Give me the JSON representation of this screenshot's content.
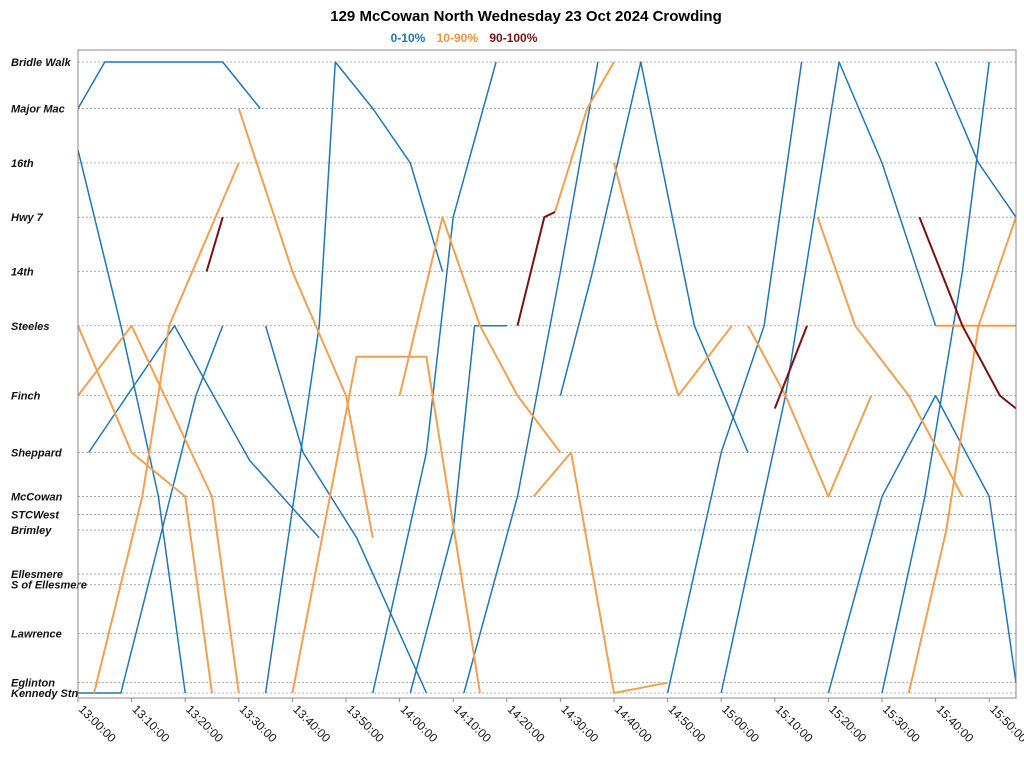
{
  "chart_data": {
    "type": "line",
    "title": "129 McCowan North Wednesday 23 Oct 2024 Crowding",
    "xlabel": "",
    "ylabel": "",
    "x_range": [
      "13:00:00",
      "15:55:00"
    ],
    "x_ticks": [
      "13:00:00",
      "13:10:00",
      "13:20:00",
      "13:30:00",
      "13:40:00",
      "13:50:00",
      "14:00:00",
      "14:10:00",
      "14:20:00",
      "14:30:00",
      "14:40:00",
      "14:50:00",
      "15:00:00",
      "15:10:00",
      "15:20:00",
      "15:30:00",
      "15:40:00",
      "15:50:00"
    ],
    "stops": [
      {
        "name": "Bridle Walk",
        "km": 18.2
      },
      {
        "name": "Major Mac",
        "km": 17.3
      },
      {
        "name": "16th",
        "km": 16.25
      },
      {
        "name": "Hwy 7",
        "km": 15.2
      },
      {
        "name": "14th",
        "km": 14.15
      },
      {
        "name": "Steeles",
        "km": 13.1
      },
      {
        "name": "Finch",
        "km": 11.75
      },
      {
        "name": "Sheppard",
        "km": 10.65
      },
      {
        "name": "McCowan",
        "km": 9.8
      },
      {
        "name": "STCWest",
        "km": 9.45
      },
      {
        "name": "Brimley",
        "km": 9.15
      },
      {
        "name": "Ellesmere",
        "km": 8.3
      },
      {
        "name": "S of Ellesmere",
        "km": 8.1
      },
      {
        "name": "Lawrence",
        "km": 7.15
      },
      {
        "name": "Eglinton",
        "km": 6.2
      },
      {
        "name": "Kennedy Stn",
        "km": 6.0
      }
    ],
    "legend": [
      {
        "label": "0-10%",
        "color": "#1f77b4"
      },
      {
        "label": "10-90%",
        "color": "#f0a050"
      },
      {
        "label": "90-100%",
        "color": "#7b1010"
      }
    ],
    "grid": true,
    "series": [
      {
        "crowding": "10-90%",
        "points": [
          [
            "13:03:00",
            6.0
          ],
          [
            "13:12:00",
            9.8
          ],
          [
            "13:17:00",
            13.1
          ],
          [
            "13:30:00",
            16.25
          ]
        ]
      },
      {
        "crowding": "90-100%",
        "points": [
          [
            "13:24:00",
            14.15
          ],
          [
            "13:27:00",
            15.2
          ]
        ]
      },
      {
        "crowding": "0-10%",
        "points": [
          [
            "13:00:00",
            17.3
          ],
          [
            "13:05:00",
            18.2
          ],
          [
            "13:27:00",
            18.2
          ],
          [
            "13:34:00",
            17.3
          ]
        ]
      },
      {
        "crowding": "0-10%",
        "points": [
          [
            "13:00:00",
            16.5
          ],
          [
            "13:08:00",
            13.1
          ],
          [
            "13:15:00",
            9.8
          ],
          [
            "13:20:00",
            6.0
          ]
        ]
      },
      {
        "crowding": "10-90%",
        "points": [
          [
            "13:00:00",
            11.75
          ],
          [
            "13:10:00",
            13.1
          ],
          [
            "13:25:00",
            9.8
          ],
          [
            "13:30:00",
            6.0
          ]
        ]
      },
      {
        "crowding": "0-10%",
        "points": [
          [
            "13:02:00",
            10.65
          ],
          [
            "13:18:00",
            13.1
          ],
          [
            "13:32:00",
            10.5
          ],
          [
            "13:45:00",
            9.0
          ]
        ]
      },
      {
        "crowding": "0-10%",
        "points": [
          [
            "13:00:00",
            6.0
          ],
          [
            "13:08:00",
            6.0
          ],
          [
            "13:22:00",
            11.75
          ],
          [
            "13:27:00",
            13.1
          ]
        ]
      },
      {
        "crowding": "10-90%",
        "points": [
          [
            "13:30:00",
            17.3
          ],
          [
            "13:40:00",
            14.15
          ],
          [
            "13:50:00",
            11.75
          ],
          [
            "13:55:00",
            9.0
          ]
        ]
      },
      {
        "crowding": "0-10%",
        "points": [
          [
            "13:35:00",
            6.0
          ],
          [
            "13:45:00",
            13.1
          ],
          [
            "13:48:00",
            18.2
          ],
          [
            "13:55:00",
            17.3
          ],
          [
            "14:02:00",
            16.25
          ],
          [
            "14:08:00",
            14.15
          ]
        ]
      },
      {
        "crowding": "0-10%",
        "points": [
          [
            "13:35:00",
            13.1
          ],
          [
            "13:42:00",
            10.65
          ],
          [
            "13:52:00",
            9.0
          ],
          [
            "14:05:00",
            6.0
          ]
        ]
      },
      {
        "crowding": "10-90%",
        "points": [
          [
            "13:40:00",
            6.0
          ],
          [
            "13:52:00",
            12.5
          ],
          [
            "14:05:00",
            12.5
          ],
          [
            "14:15:00",
            6.0
          ]
        ]
      },
      {
        "crowding": "0-10%",
        "points": [
          [
            "13:55:00",
            6.0
          ],
          [
            "14:05:00",
            10.65
          ],
          [
            "14:10:00",
            15.2
          ],
          [
            "14:18:00",
            18.2
          ]
        ]
      },
      {
        "crowding": "10-90%",
        "points": [
          [
            "14:00:00",
            11.75
          ],
          [
            "14:08:00",
            15.2
          ],
          [
            "14:15:00",
            13.1
          ],
          [
            "14:22:00",
            11.75
          ],
          [
            "14:30:00",
            10.65
          ]
        ]
      },
      {
        "crowding": "90-100%",
        "points": [
          [
            "14:22:00",
            13.1
          ],
          [
            "14:27:00",
            15.2
          ],
          [
            "14:29:00",
            15.3
          ]
        ]
      },
      {
        "crowding": "10-90%",
        "points": [
          [
            "14:29:00",
            15.3
          ],
          [
            "14:35:00",
            17.3
          ],
          [
            "14:40:00",
            18.2
          ]
        ]
      },
      {
        "crowding": "0-10%",
        "points": [
          [
            "14:30:00",
            11.75
          ],
          [
            "14:36:00",
            14.15
          ],
          [
            "14:45:00",
            18.2
          ],
          [
            "14:55:00",
            13.1
          ],
          [
            "15:05:00",
            10.65
          ]
        ]
      },
      {
        "crowding": "0-10%",
        "points": [
          [
            "14:12:00",
            6.0
          ],
          [
            "14:22:00",
            9.8
          ],
          [
            "14:30:00",
            14.15
          ],
          [
            "14:37:00",
            18.2
          ]
        ]
      },
      {
        "crowding": "10-90%",
        "points": [
          [
            "14:40:00",
            16.25
          ],
          [
            "14:48:00",
            13.1
          ],
          [
            "14:52:00",
            11.75
          ],
          [
            "15:02:00",
            13.1
          ]
        ]
      },
      {
        "crowding": "0-10%",
        "points": [
          [
            "14:50:00",
            6.0
          ],
          [
            "15:00:00",
            10.65
          ],
          [
            "15:08:00",
            13.1
          ],
          [
            "15:15:00",
            18.2
          ]
        ]
      },
      {
        "crowding": "10-90%",
        "points": [
          [
            "15:05:00",
            13.1
          ],
          [
            "15:12:00",
            11.75
          ],
          [
            "15:20:00",
            9.8
          ],
          [
            "15:28:00",
            11.75
          ]
        ]
      },
      {
        "crowding": "90-100%",
        "points": [
          [
            "15:10:00",
            11.5
          ],
          [
            "15:16:00",
            13.1
          ]
        ]
      },
      {
        "crowding": "10-90%",
        "points": [
          [
            "15:18:00",
            15.2
          ],
          [
            "15:25:00",
            13.1
          ],
          [
            "15:35:00",
            11.75
          ],
          [
            "15:45:00",
            9.8
          ]
        ]
      },
      {
        "crowding": "90-100%",
        "points": [
          [
            "15:37:00",
            15.2
          ],
          [
            "15:45:00",
            13.1
          ],
          [
            "15:52:00",
            11.75
          ],
          [
            "15:55:00",
            11.5
          ]
        ]
      },
      {
        "crowding": "0-10%",
        "points": [
          [
            "15:00:00",
            6.0
          ],
          [
            "15:12:00",
            11.75
          ],
          [
            "15:22:00",
            18.2
          ],
          [
            "15:30:00",
            16.25
          ],
          [
            "15:40:00",
            13.1
          ]
        ]
      },
      {
        "crowding": "0-10%",
        "points": [
          [
            "15:30:00",
            6.0
          ],
          [
            "15:38:00",
            9.8
          ],
          [
            "15:45:00",
            14.15
          ],
          [
            "15:50:00",
            18.2
          ]
        ]
      },
      {
        "crowding": "10-90%",
        "points": [
          [
            "15:35:00",
            6.0
          ],
          [
            "15:42:00",
            9.15
          ],
          [
            "15:48:00",
            13.1
          ],
          [
            "15:55:00",
            15.2
          ]
        ]
      },
      {
        "crowding": "0-10%",
        "points": [
          [
            "15:40:00",
            18.2
          ],
          [
            "15:48:00",
            16.25
          ],
          [
            "15:55:00",
            15.2
          ]
        ]
      },
      {
        "crowding": "10-90%",
        "points": [
          [
            "13:00:00",
            13.1
          ],
          [
            "13:10:00",
            10.65
          ],
          [
            "13:20:00",
            9.8
          ],
          [
            "13:25:00",
            6.0
          ]
        ]
      },
      {
        "crowding": "0-10%",
        "points": [
          [
            "14:02:00",
            6.0
          ],
          [
            "14:10:00",
            9.15
          ],
          [
            "14:14:00",
            13.1
          ],
          [
            "14:20:00",
            13.1
          ]
        ]
      },
      {
        "crowding": "10-90%",
        "points": [
          [
            "14:25:00",
            9.8
          ],
          [
            "14:32:00",
            10.65
          ],
          [
            "14:40:00",
            6.0
          ],
          [
            "14:50:00",
            6.2
          ]
        ]
      },
      {
        "crowding": "10-90%",
        "points": [
          [
            "15:40:00",
            13.1
          ],
          [
            "15:55:00",
            13.1
          ]
        ]
      },
      {
        "crowding": "0-10%",
        "points": [
          [
            "15:20:00",
            6.0
          ],
          [
            "15:30:00",
            9.8
          ],
          [
            "15:40:00",
            11.75
          ],
          [
            "15:50:00",
            9.8
          ],
          [
            "15:55:00",
            6.2
          ]
        ]
      }
    ]
  }
}
